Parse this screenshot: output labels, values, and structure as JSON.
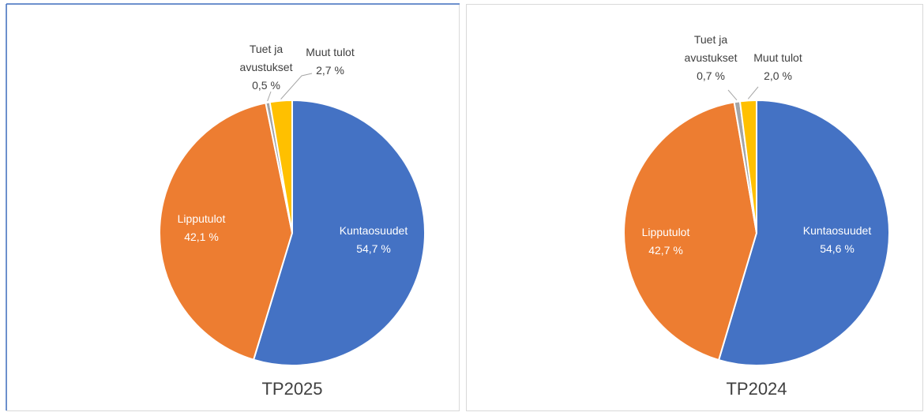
{
  "chart_data": [
    {
      "type": "pie",
      "title": "TP2025",
      "categories": [
        "Kuntaosuudet",
        "Lipputulot",
        "Tuet ja avustukset",
        "Muut tulot"
      ],
      "values": [
        54.7,
        42.1,
        0.5,
        2.7
      ],
      "value_labels": [
        "54,7 %",
        "42,1 %",
        "0,5 %",
        "2,7 %"
      ],
      "colors": [
        "#4472c4",
        "#ed7d31",
        "#a5a5a5",
        "#ffc000"
      ]
    },
    {
      "type": "pie",
      "title": "TP2024",
      "categories": [
        "Kuntaosuudet",
        "Lipputulot",
        "Tuet ja avustukset",
        "Muut tulot"
      ],
      "values": [
        54.6,
        42.7,
        0.7,
        2.0
      ],
      "value_labels": [
        "54,6 %",
        "42,7 %",
        "0,7 %",
        "2,0 %"
      ],
      "colors": [
        "#4472c4",
        "#ed7d31",
        "#a5a5a5",
        "#ffc000"
      ]
    }
  ]
}
